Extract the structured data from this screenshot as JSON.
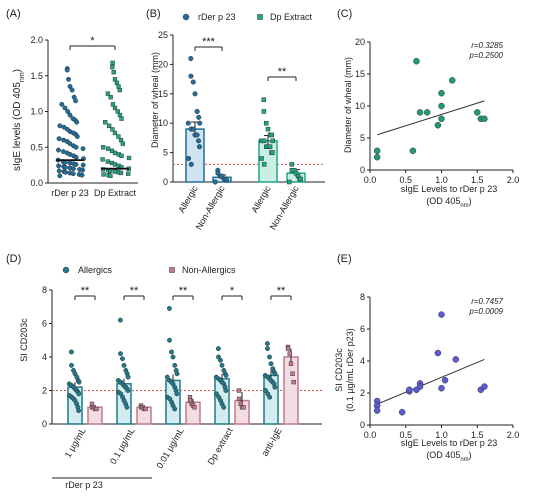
{
  "colors": {
    "rder": "#1f6e9c",
    "dp": "#1fa888",
    "allergic": "#1f7a8c",
    "nonallergic": "#c27a8c",
    "scatterC": "#1e9c6a",
    "scatterE": "#5b5bd6",
    "cutoff": "#d9534f"
  },
  "chart_data": [
    {
      "panel": "(A)",
      "type": "scatter",
      "categories": [
        "rDer p 23",
        "Dp Extract"
      ],
      "ylabel_main": "sIgE levels (OD 405",
      "ylabel_sub": "nm",
      "ylabel_end": ")",
      "ylim": [
        0,
        2.0
      ],
      "yticks": [
        "0.0",
        "0.5",
        "1.0",
        "1.5",
        "2.0"
      ],
      "medians": [
        0.32,
        0.2
      ],
      "significance": "*",
      "series": [
        {
          "values": [
            1.6,
            1.58,
            1.45,
            1.35,
            1.3,
            1.2,
            1.15,
            1.1,
            1.05,
            1.0,
            0.95,
            0.9,
            0.88,
            0.85,
            0.8,
            0.78,
            0.75,
            0.72,
            0.7,
            0.68,
            0.65,
            0.62,
            0.6,
            0.58,
            0.55,
            0.52,
            0.5,
            0.48,
            0.46,
            0.44,
            0.42,
            0.4,
            0.38,
            0.36,
            0.34,
            0.32,
            0.3,
            0.29,
            0.28,
            0.27,
            0.26,
            0.25,
            0.24,
            0.23,
            0.22,
            0.21,
            0.2,
            0.19,
            0.18,
            0.17,
            0.16,
            0.15,
            0.14,
            0.13,
            0.12,
            0.11,
            0.1
          ]
        },
        {
          "values": [
            1.68,
            1.62,
            1.55,
            1.45,
            1.4,
            1.35,
            1.3,
            1.25,
            1.2,
            1.1,
            1.05,
            1.0,
            0.95,
            0.9,
            0.85,
            0.8,
            0.75,
            0.7,
            0.65,
            0.6,
            0.55,
            0.5,
            0.48,
            0.45,
            0.42,
            0.4,
            0.38,
            0.35,
            0.33,
            0.3,
            0.28,
            0.26,
            0.24,
            0.22,
            0.2,
            0.19,
            0.18,
            0.17,
            0.16,
            0.15,
            0.14,
            0.13,
            0.12,
            0.11,
            0.1
          ]
        }
      ]
    },
    {
      "panel": "(B)",
      "type": "bar",
      "legend": [
        "rDer p 23",
        "Dp Extract"
      ],
      "ylabel": "Diameter of wheal (mm)",
      "ylim": [
        0,
        25
      ],
      "yticks": [
        "0",
        "5",
        "10",
        "15",
        "20",
        "25"
      ],
      "categories": [
        "Allergic",
        "Non-Allergic",
        "Allergic",
        "Non-Allergic"
      ],
      "means": [
        9,
        0.8,
        7,
        1.5
      ],
      "errors": [
        1.2,
        0.4,
        0.9,
        0.6
      ],
      "cutoff": 3,
      "significance": [
        "***",
        "**"
      ],
      "series": [
        {
          "name": "rDer p 23",
          "allergic": [
            21,
            18,
            17,
            15,
            12,
            11,
            10,
            10,
            9,
            9,
            8,
            8,
            7,
            6,
            4,
            3
          ],
          "nonallergic": [
            2,
            1.5,
            1,
            1,
            0.5,
            0.5,
            0.3,
            0
          ]
        },
        {
          "name": "Dp Extract",
          "allergic": [
            14,
            12,
            10,
            9,
            8,
            8,
            7,
            7,
            7,
            6,
            6,
            6,
            5,
            5,
            4,
            3
          ],
          "nonallergic": [
            3,
            2,
            2,
            1.5,
            1,
            0.5,
            0.5,
            0
          ]
        }
      ]
    },
    {
      "panel": "(C)",
      "type": "scatter",
      "xlabel_line1": "sIgE Levels to rDer p 23",
      "xlabel_line2_main": "(OD 405",
      "xlabel_line2_sub": "nm",
      "xlabel_line2_end": ")",
      "ylabel": "Diameter of wheal (mm)",
      "xlim": [
        0,
        2.0
      ],
      "ylim": [
        0,
        20
      ],
      "xticks": [
        "0.0",
        "0.5",
        "1.0",
        "1.5",
        "2.0"
      ],
      "yticks": [
        "0",
        "5",
        "10",
        "15",
        "20"
      ],
      "r_text": "r=0.3285",
      "p_text": "p=0.2500",
      "regression": [
        [
          0.1,
          5.5
        ],
        [
          1.6,
          10.8
        ]
      ],
      "points": [
        [
          0.1,
          3
        ],
        [
          0.1,
          2
        ],
        [
          0.6,
          3
        ],
        [
          0.65,
          17
        ],
        [
          0.7,
          9
        ],
        [
          0.8,
          9
        ],
        [
          0.95,
          7
        ],
        [
          1.0,
          8
        ],
        [
          1.0,
          12
        ],
        [
          1.0,
          10
        ],
        [
          1.15,
          14
        ],
        [
          1.5,
          9
        ],
        [
          1.55,
          8
        ],
        [
          1.6,
          8
        ]
      ]
    },
    {
      "panel": "(D)",
      "type": "bar",
      "legend": [
        "Allergics",
        "Non-Allergics"
      ],
      "ylabel": "SI CD203c",
      "ylim": [
        0,
        8
      ],
      "yticks": [
        "0",
        "2",
        "4",
        "6",
        "8"
      ],
      "categories": [
        "1 µg/mL",
        "0.1 µg/mL",
        "0.01 µg/mL",
        "Dp extract",
        "anti-IgE"
      ],
      "group_label": "rDer p 23",
      "cutoff": 2,
      "significance": [
        "**",
        "**",
        "**",
        "*",
        "**"
      ],
      "allergic_means": [
        2.2,
        2.4,
        2.6,
        2.7,
        2.9
      ],
      "allergic_errors": [
        0.3,
        0.3,
        0.35,
        0.3,
        0.3
      ],
      "nonallergic_means": [
        1.0,
        1.0,
        1.3,
        1.4,
        4.0
      ],
      "nonallergic_errors": [
        0.1,
        0.1,
        0.2,
        0.5,
        0.5
      ],
      "allergic_points": [
        [
          4.3,
          3.5,
          3.2,
          3.0,
          2.8,
          2.6,
          2.5,
          2.4,
          2.3,
          2.2,
          2.1,
          2.0,
          1.9,
          1.8,
          1.7,
          1.6,
          1.5,
          1.4,
          1.2,
          1.0,
          0.8
        ],
        [
          6.2,
          4.2,
          3.9,
          3.5,
          3.2,
          3.0,
          2.8,
          2.6,
          2.5,
          2.4,
          2.3,
          2.2,
          2.1,
          2.0,
          1.9,
          1.8,
          1.6,
          1.4,
          1.2,
          1.0
        ],
        [
          6.9,
          5.0,
          4.3,
          4.0,
          3.5,
          3.2,
          3.0,
          2.8,
          2.6,
          2.5,
          2.4,
          2.2,
          2.0,
          1.8,
          1.6,
          1.5,
          1.3,
          1.1,
          0.9
        ],
        [
          4.5,
          4.0,
          3.8,
          3.5,
          3.2,
          3.0,
          2.9,
          2.8,
          2.7,
          2.6,
          2.5,
          2.4,
          2.2,
          2.0,
          1.8,
          1.6,
          1.4,
          1.2,
          1.0
        ],
        [
          4.8,
          4.5,
          4.0,
          3.6,
          3.3,
          3.1,
          3.0,
          2.9,
          2.8,
          2.7,
          2.6,
          2.5,
          2.4,
          2.2,
          2.0,
          1.8,
          1.6
        ]
      ],
      "nonallergic_points": [
        [
          1.2,
          1.0,
          1.0,
          0.9,
          0.9
        ],
        [
          1.1,
          1.0,
          1.0,
          0.9,
          0.9
        ],
        [
          1.6,
          1.4,
          1.2,
          1.1,
          1.0
        ],
        [
          2.0,
          1.5,
          1.2,
          1.0,
          1.0
        ],
        [
          4.6,
          4.5,
          4.2,
          3.6,
          3.0,
          2.5
        ]
      ]
    },
    {
      "panel": "(E)",
      "type": "scatter",
      "xlabel_line1": "sIgE Levels to rDer p 23",
      "xlabel_line2_main": "(OD 405",
      "xlabel_line2_sub": "nm",
      "xlabel_line2_end": ")",
      "ylabel_line1": "SI CD203c",
      "ylabel_line2": "(0.1 µg/mL rDer p23)",
      "xlim": [
        0,
        2.0
      ],
      "ylim": [
        0,
        8
      ],
      "xticks": [
        "0.0",
        "0.5",
        "1.0",
        "1.5",
        "2.0"
      ],
      "yticks": [
        "0",
        "2",
        "4",
        "6",
        "8"
      ],
      "r_text": "r=0.7457",
      "p_text": "p=0.0009",
      "regression": [
        [
          0.1,
          1.3
        ],
        [
          1.6,
          4.1
        ]
      ],
      "points": [
        [
          0.1,
          1.5
        ],
        [
          0.1,
          1.2
        ],
        [
          0.1,
          0.9
        ],
        [
          0.45,
          0.8
        ],
        [
          0.55,
          2.1
        ],
        [
          0.55,
          2.2
        ],
        [
          0.65,
          2.2
        ],
        [
          0.7,
          2.6
        ],
        [
          0.7,
          2.4
        ],
        [
          0.95,
          4.5
        ],
        [
          1.0,
          6.9
        ],
        [
          1.05,
          2.8
        ],
        [
          1.0,
          2.3
        ],
        [
          1.2,
          4.1
        ],
        [
          1.55,
          2.2
        ],
        [
          1.6,
          2.4
        ]
      ]
    }
  ]
}
